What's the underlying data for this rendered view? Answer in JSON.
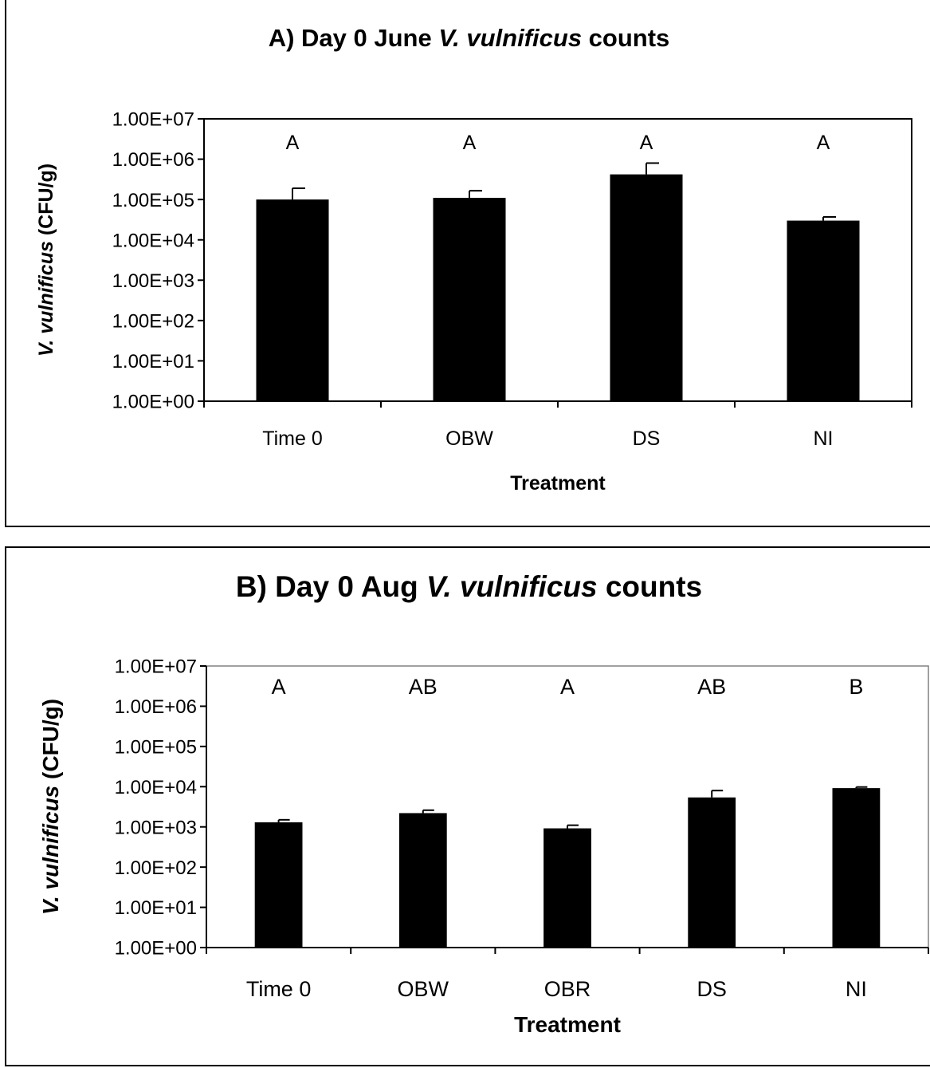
{
  "chart_data": [
    {
      "type": "bar",
      "title_prefix": "A)  Day 0 June ",
      "title_italic": "V. vulnificus",
      "title_suffix": " counts",
      "xlabel": "Treatment",
      "ylabel_italic": "V. vulnificus",
      "ylabel_rest": " (CFU/g)",
      "yscale": "log",
      "ylim": [
        1,
        10000000
      ],
      "yticks": [
        "1.00E+00",
        "1.00E+01",
        "1.00E+02",
        "1.00E+03",
        "1.00E+04",
        "1.00E+05",
        "1.00E+06",
        "1.00E+07"
      ],
      "categories": [
        "Time 0",
        "OBW",
        "DS",
        "NI"
      ],
      "values": [
        100000,
        110000,
        420000,
        30000
      ],
      "error_upper": [
        190000,
        165000,
        800000,
        37000
      ],
      "significance_letters": [
        "A",
        "A",
        "A",
        "A"
      ],
      "bar_color": "#000000",
      "frame_color": "#000000",
      "grid": false,
      "legend": "none"
    },
    {
      "type": "bar",
      "title_prefix": "B)  Day 0 Aug ",
      "title_italic": "V. vulnificus",
      "title_suffix": " counts",
      "xlabel": "Treatment",
      "ylabel_italic": "V. vulnificus",
      "ylabel_rest": " (CFU/g)",
      "yscale": "log",
      "ylim": [
        1,
        10000000
      ],
      "yticks": [
        "1.00E+00",
        "1.00E+01",
        "1.00E+02",
        "1.00E+03",
        "1.00E+04",
        "1.00E+05",
        "1.00E+06",
        "1.00E+07"
      ],
      "categories": [
        "Time 0",
        "OBW",
        "OBR",
        "DS",
        "NI"
      ],
      "values": [
        1300,
        2200,
        920,
        5400,
        9200
      ],
      "error_upper": [
        1500,
        2600,
        1100,
        8000,
        9800
      ],
      "significance_letters": [
        "A",
        "AB",
        "A",
        "AB",
        "B"
      ],
      "bar_color": "#000000",
      "frame_color": "#808080",
      "grid": false,
      "legend": "none"
    }
  ]
}
